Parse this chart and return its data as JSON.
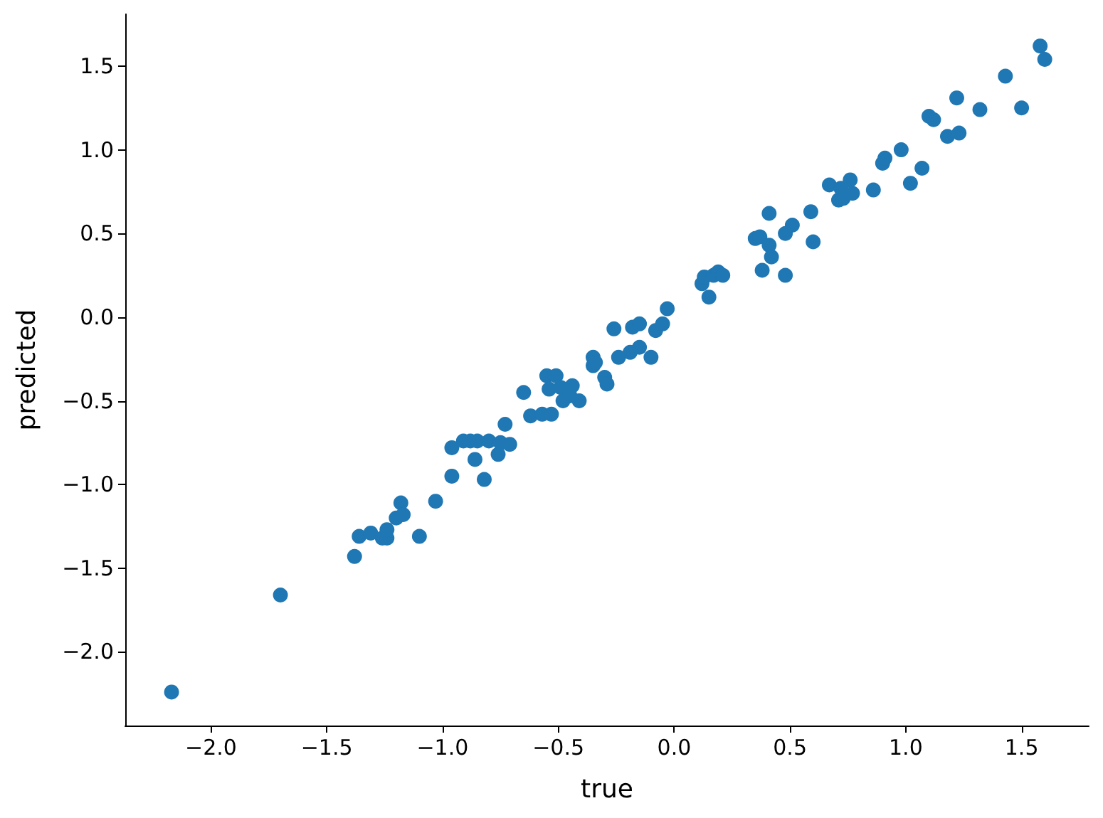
{
  "chart_data": {
    "type": "scatter",
    "xlabel": "true",
    "ylabel": "predicted",
    "color": "#1f77b4",
    "marker": "circle",
    "xlim": [
      -2.37,
      1.79
    ],
    "ylim": [
      -2.44,
      1.81
    ],
    "xticks": [
      {
        "value": -2,
        "label": "−2.0"
      },
      {
        "value": -1.5,
        "label": "−1.5"
      },
      {
        "value": -1,
        "label": "−1.0"
      },
      {
        "value": -0.5,
        "label": "−0.5"
      },
      {
        "value": 0,
        "label": "0.0"
      },
      {
        "value": 0.5,
        "label": "0.5"
      },
      {
        "value": 1,
        "label": "1.0"
      },
      {
        "value": 1.5,
        "label": "1.5"
      }
    ],
    "yticks": [
      {
        "value": -2,
        "label": "−2.0"
      },
      {
        "value": -1.5,
        "label": "−1.5"
      },
      {
        "value": -1,
        "label": "−1.0"
      },
      {
        "value": -0.5,
        "label": "−0.5"
      },
      {
        "value": 0,
        "label": "0.0"
      },
      {
        "value": 0.5,
        "label": "0.5"
      },
      {
        "value": 1,
        "label": "1.0"
      },
      {
        "value": 1.5,
        "label": "1.5"
      }
    ],
    "x": [
      -2.17,
      -1.7,
      -1.38,
      -1.36,
      -1.31,
      -1.26,
      -1.24,
      -1.24,
      -1.2,
      -1.18,
      -1.17,
      -1.1,
      -1.03,
      -0.96,
      -0.96,
      -0.91,
      -0.88,
      -0.86,
      -0.85,
      -0.82,
      -0.8,
      -0.76,
      -0.75,
      -0.73,
      -0.71,
      -0.65,
      -0.62,
      -0.57,
      -0.55,
      -0.54,
      -0.53,
      -0.51,
      -0.49,
      -0.48,
      -0.45,
      -0.44,
      -0.41,
      -0.35,
      -0.35,
      -0.34,
      -0.3,
      -0.29,
      -0.26,
      -0.24,
      -0.19,
      -0.18,
      -0.15,
      -0.15,
      -0.1,
      -0.08,
      -0.05,
      -0.03,
      0.12,
      0.13,
      0.15,
      0.17,
      0.19,
      0.21,
      0.35,
      0.37,
      0.38,
      0.41,
      0.41,
      0.42,
      0.48,
      0.48,
      0.51,
      0.59,
      0.6,
      0.67,
      0.71,
      0.72,
      0.73,
      0.76,
      0.77,
      0.86,
      0.9,
      0.91,
      0.98,
      1.02,
      1.07,
      1.1,
      1.12,
      1.18,
      1.22,
      1.23,
      1.32,
      1.43,
      1.5,
      1.58,
      1.6
    ],
    "values": [
      -2.24,
      -1.66,
      -1.43,
      -1.31,
      -1.29,
      -1.32,
      -1.32,
      -1.27,
      -1.2,
      -1.11,
      -1.18,
      -1.31,
      -1.1,
      -0.95,
      -0.78,
      -0.74,
      -0.74,
      -0.85,
      -0.74,
      -0.97,
      -0.74,
      -0.82,
      -0.75,
      -0.64,
      -0.76,
      -0.45,
      -0.59,
      -0.58,
      -0.35,
      -0.43,
      -0.58,
      -0.35,
      -0.42,
      -0.5,
      -0.47,
      -0.41,
      -0.5,
      -0.24,
      -0.29,
      -0.27,
      -0.36,
      -0.4,
      -0.07,
      -0.24,
      -0.21,
      -0.06,
      -0.04,
      -0.18,
      -0.24,
      -0.08,
      -0.04,
      0.05,
      0.2,
      0.24,
      0.12,
      0.25,
      0.27,
      0.25,
      0.47,
      0.48,
      0.28,
      0.62,
      0.43,
      0.36,
      0.5,
      0.25,
      0.55,
      0.63,
      0.45,
      0.79,
      0.7,
      0.77,
      0.71,
      0.82,
      0.74,
      0.76,
      0.92,
      0.95,
      1.0,
      0.8,
      0.89,
      1.2,
      1.18,
      1.08,
      1.31,
      1.1,
      1.24,
      1.44,
      1.25,
      1.62,
      1.54
    ]
  }
}
